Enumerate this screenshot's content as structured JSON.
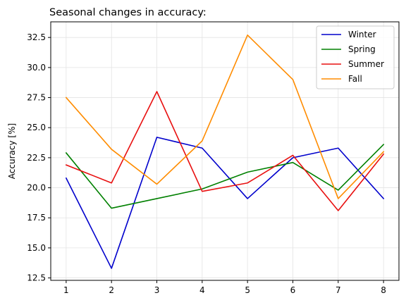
{
  "chart_data": {
    "type": "line",
    "title": "Seasonal changes in accuracy:",
    "xlabel": "",
    "ylabel": "Accuracy [%]",
    "x": [
      1,
      2,
      3,
      4,
      5,
      6,
      7,
      8
    ],
    "xlim": [
      0.66,
      8.34
    ],
    "ylim": [
      12.3,
      33.8
    ],
    "yticks": [
      12.5,
      15.0,
      17.5,
      20.0,
      22.5,
      25.0,
      27.5,
      30.0,
      32.5
    ],
    "ytick_labels": [
      "12.5",
      "15.0",
      "17.5",
      "20.0",
      "22.5",
      "25.0",
      "27.5",
      "30.0",
      "32.5"
    ],
    "xticks": [
      1,
      2,
      3,
      4,
      5,
      6,
      7,
      8
    ],
    "xtick_labels": [
      "1",
      "2",
      "3",
      "4",
      "5",
      "6",
      "7",
      "8"
    ],
    "grid": true,
    "legend_position": "top-right",
    "series": [
      {
        "name": "Winter",
        "color": "#0000cc",
        "values": [
          20.8,
          13.3,
          24.2,
          23.3,
          19.1,
          22.5,
          23.3,
          19.1
        ]
      },
      {
        "name": "Spring",
        "color": "#008000",
        "values": [
          22.9,
          18.3,
          19.1,
          19.9,
          21.3,
          22.1,
          19.8,
          23.6
        ]
      },
      {
        "name": "Summer",
        "color": "#e81010",
        "values": [
          21.9,
          20.4,
          28.0,
          19.7,
          20.4,
          22.7,
          18.1,
          22.8
        ]
      },
      {
        "name": "Fall",
        "color": "#ff8c00",
        "values": [
          27.5,
          23.2,
          20.3,
          23.9,
          32.7,
          29.0,
          19.1,
          23.0
        ]
      }
    ]
  }
}
